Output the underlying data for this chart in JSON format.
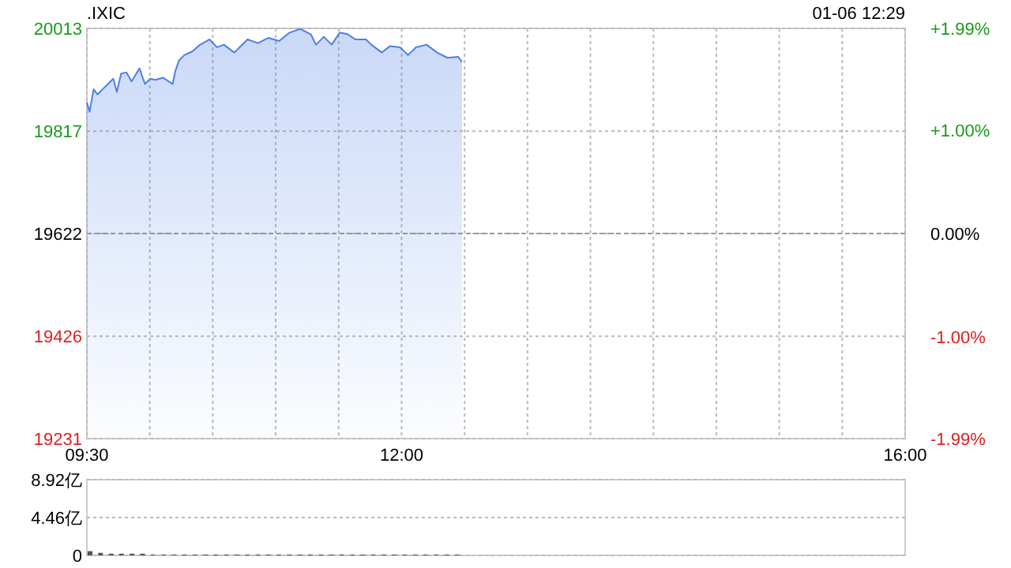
{
  "chart_data": [
    {
      "type": "area",
      "title": ".IXIC",
      "subtitle": "01-06 12:29",
      "color": "#4d7fe6",
      "x": [
        9.5,
        9.521,
        9.554,
        9.584,
        9.625,
        9.667,
        9.71,
        9.738,
        9.772,
        9.814,
        9.855,
        9.918,
        9.961,
        10.002,
        10.043,
        10.106,
        10.149,
        10.181,
        10.203,
        10.232,
        10.274,
        10.337,
        10.4,
        10.475,
        10.533,
        10.588,
        10.671,
        10.713,
        10.776,
        10.859,
        10.943,
        11.027,
        11.11,
        11.194,
        11.278,
        11.32,
        11.382,
        11.445,
        11.508,
        11.571,
        11.633,
        11.717,
        11.759,
        11.843,
        11.906,
        11.988,
        12.051,
        12.114,
        12.198,
        12.282,
        12.365,
        12.449,
        12.48
      ],
      "values": [
        19872,
        19854,
        19897,
        19887,
        19897,
        19907,
        19917,
        19892,
        19927,
        19929,
        19912,
        19937,
        19907,
        19917,
        19915,
        19919,
        19912,
        19907,
        19932,
        19952,
        19962,
        19969,
        19982,
        19992,
        19977,
        19982,
        19967,
        19977,
        19992,
        19985,
        19995,
        19989,
        20005,
        20012,
        20002,
        19982,
        19997,
        19982,
        20005,
        20002,
        19992,
        19992,
        19982,
        19967,
        19979,
        19977,
        19962,
        19977,
        19982,
        19967,
        19957,
        19959,
        19949
      ],
      "xlim": [
        9.5,
        16
      ],
      "xticks": [
        {
          "value": 9.5,
          "label": "09:30"
        },
        {
          "value": 10,
          "label": null
        },
        {
          "value": 10.5,
          "label": null
        },
        {
          "value": 11,
          "label": null
        },
        {
          "value": 11.5,
          "label": null
        },
        {
          "value": 12,
          "label": "12:00"
        },
        {
          "value": 12.5,
          "label": null
        },
        {
          "value": 13,
          "label": null
        },
        {
          "value": 13.5,
          "label": null
        },
        {
          "value": 14,
          "label": null
        },
        {
          "value": 14.5,
          "label": null
        },
        {
          "value": 15,
          "label": null
        },
        {
          "value": 15.5,
          "label": null
        },
        {
          "value": 16,
          "label": "16:00"
        }
      ],
      "ylim": [
        19231,
        20013
      ],
      "yticks": [
        19231,
        19426,
        19622,
        19817,
        20013
      ],
      "y2lim": [
        -1.99,
        1.99
      ],
      "y2ticks": [
        {
          "value": -1.99,
          "label": "-1.99%"
        },
        {
          "value": -1,
          "label": "-1.00%"
        },
        {
          "value": 0,
          "label": "0.00%"
        },
        {
          "value": 1,
          "label": "+1.00%"
        },
        {
          "value": 1.99,
          "label": "+1.99%"
        }
      ],
      "ref_lines": [
        {
          "axis": "y",
          "value": 19622,
          "color": "#999999",
          "line_style": "dashed"
        }
      ],
      "grid": true
    },
    {
      "type": "bar",
      "color": "#555555",
      "tick_labels": "y",
      "x": [
        9.5,
        9.583,
        9.667,
        9.75,
        9.833,
        9.917,
        10,
        10.083,
        10.167,
        10.25,
        10.333,
        10.417,
        10.5,
        10.583,
        10.667,
        10.75,
        10.833,
        10.917,
        11,
        11.083,
        11.167,
        11.25,
        11.333,
        11.417,
        11.5,
        11.583,
        11.667,
        11.75,
        11.833,
        11.917,
        12,
        12.083,
        12.167,
        12.25,
        12.333,
        12.417
      ],
      "values": [
        0.5,
        0.3,
        0.2,
        0.2,
        0.2,
        0.2,
        0.1,
        0.1,
        0.1,
        0.1,
        0.1,
        0.1,
        0.1,
        0.1,
        0.1,
        0.1,
        0.1,
        0.1,
        0.1,
        0.1,
        0.1,
        0.1,
        0.1,
        0.1,
        0.1,
        0.1,
        0.1,
        0.1,
        0.1,
        0.1,
        0.1,
        0.1,
        0.1,
        0.1,
        0.1,
        0.1
      ],
      "xlim": [
        9.5,
        16
      ],
      "ylim": [
        0,
        8.92
      ],
      "yticks": [
        {
          "value": 0,
          "label": "0"
        },
        {
          "value": 4.46,
          "label": "4.46亿"
        },
        {
          "value": 8.92,
          "label": "8.92亿"
        }
      ],
      "grid": "y"
    }
  ]
}
